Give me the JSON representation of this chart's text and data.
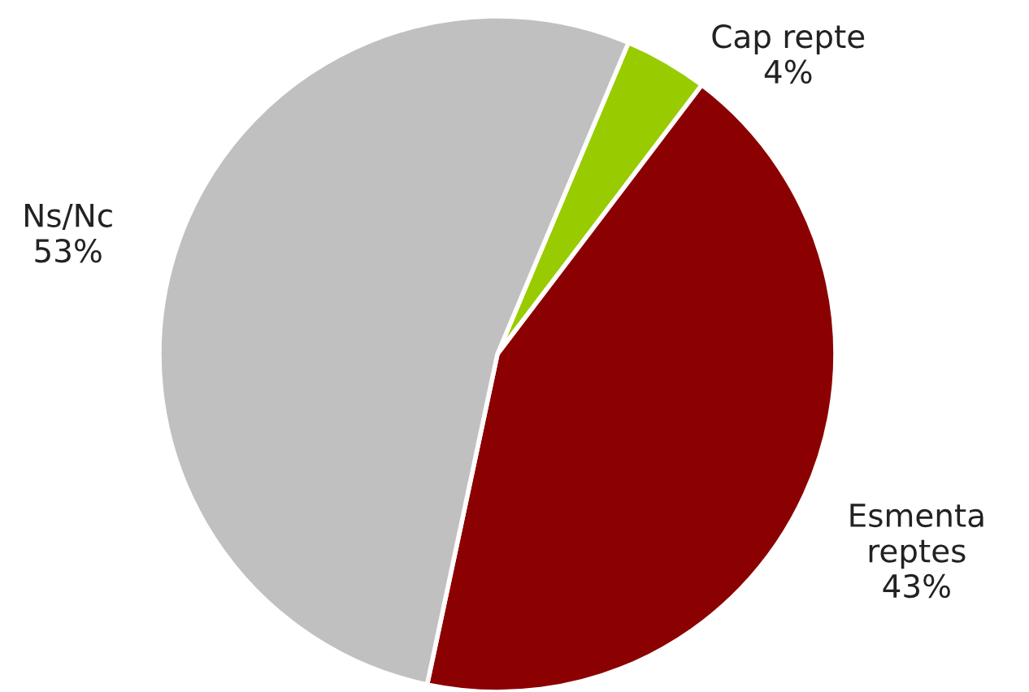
{
  "chart_data": {
    "type": "pie",
    "categories": [
      "Cap repte",
      "Esmenta\nreptes",
      "Ns/Nc"
    ],
    "values": [
      4,
      43,
      53
    ],
    "value_labels": [
      "4%",
      "43%",
      "53%"
    ],
    "colors": [
      "#99cc00",
      "#8b0000",
      "#c0c0c0"
    ],
    "legend": false
  }
}
